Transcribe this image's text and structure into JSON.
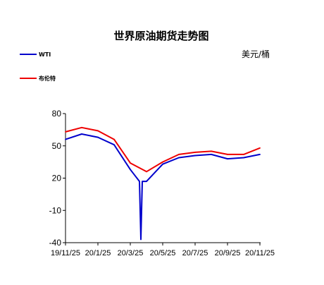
{
  "chart_data": {
    "type": "line",
    "title": "世界原油期货走势图",
    "unit": "美元/桶",
    "x": [
      "19/11/25",
      "19/12/25",
      "20/1/25",
      "20/2/25",
      "20/3/25",
      "20/4/25",
      "20/5/25",
      "20/6/25",
      "20/7/25",
      "20/8/25",
      "20/9/25",
      "20/10/25",
      "20/11/25"
    ],
    "xticks": [
      "19/11/25",
      "20/1/25",
      "20/3/25",
      "20/5/25",
      "20/7/25",
      "20/9/25",
      "20/11/25"
    ],
    "yticks": [
      80,
      50,
      20,
      -10,
      -40
    ],
    "ylim": [
      -40,
      80
    ],
    "legend_position": "top-left",
    "series": [
      {
        "name": "WTI",
        "color": "#0000cc",
        "values": [
          56,
          61,
          58,
          51,
          28,
          17,
          33,
          39,
          41,
          42,
          38,
          39,
          42
        ],
        "extreme": {
          "x": "20/4/25",
          "y": -37
        }
      },
      {
        "name": "布伦特",
        "color": "#ee0000",
        "values": [
          63,
          67,
          64,
          56,
          34,
          26,
          35,
          42,
          44,
          45,
          42,
          42,
          48
        ]
      }
    ]
  }
}
